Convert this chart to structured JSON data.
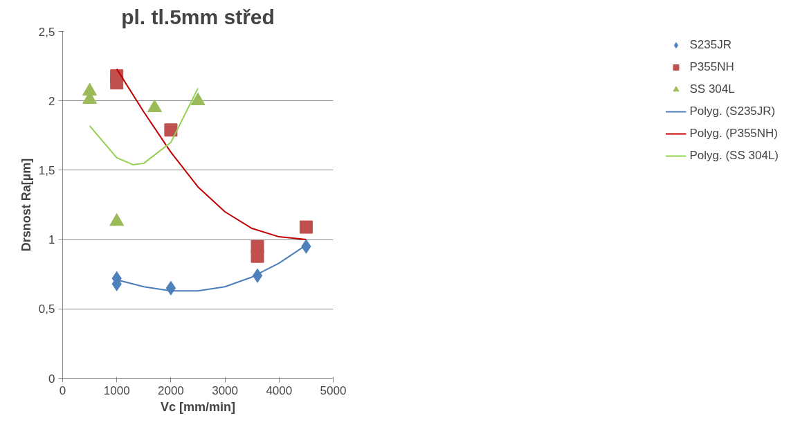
{
  "chart_data": {
    "type": "scatter",
    "title": "pl. tl.5mm střed",
    "xlabel": "Vc [mm/min]",
    "ylabel": "Drsnost Ra[µm]",
    "xlim": [
      0,
      5000
    ],
    "xticks": [
      0,
      1000,
      2000,
      3000,
      4000,
      5000
    ],
    "ylim": [
      0,
      2.5
    ],
    "yticks": [
      0,
      {
        "value": 0.5,
        "label": "0,5"
      },
      1,
      {
        "value": 1.5,
        "label": "1,5"
      },
      2,
      {
        "value": 2.5,
        "label": "2,5"
      }
    ],
    "grid": "y",
    "legend": "right",
    "series": [
      {
        "name": "S235JR",
        "color": "#4f81bd",
        "marker": "diamond",
        "x": [
          1000,
          1000,
          2000,
          3600,
          4500
        ],
        "values": [
          0.72,
          0.68,
          0.65,
          0.74,
          0.95
        ]
      },
      {
        "name": "P355NH",
        "color": "#c0504d",
        "marker": "square",
        "x": [
          1000,
          1000,
          2000,
          3600,
          3600,
          4500
        ],
        "values": [
          2.18,
          2.13,
          1.79,
          0.95,
          0.88,
          1.09
        ]
      },
      {
        "name": "SS 304L",
        "color": "#9bbb59",
        "marker": "triangle",
        "x": [
          500,
          500,
          1000,
          1700,
          2500
        ],
        "values": [
          2.07,
          2.01,
          1.13,
          1.95,
          2.0
        ]
      },
      {
        "name": "Polyg. (S235JR)",
        "type": "line",
        "marker": "none",
        "color": "#4a7ebb",
        "x": [
          1000,
          1500,
          2000,
          2500,
          3000,
          3500,
          4000,
          4500
        ],
        "values": [
          0.71,
          0.66,
          0.63,
          0.63,
          0.66,
          0.73,
          0.83,
          0.96
        ]
      },
      {
        "name": "Polyg. (P355NH)",
        "type": "line",
        "marker": "none",
        "color": "#c00000",
        "x": [
          1000,
          1500,
          2000,
          2500,
          3000,
          3500,
          4000,
          4500
        ],
        "values": [
          2.23,
          1.92,
          1.63,
          1.38,
          1.2,
          1.08,
          1.02,
          1.0
        ]
      },
      {
        "name": "Polyg. (SS 304L)",
        "type": "line",
        "marker": "none",
        "color": "#92d050",
        "x": [
          500,
          1000,
          1300,
          1500,
          2000,
          2500
        ],
        "values": [
          1.82,
          1.59,
          1.54,
          1.55,
          1.7,
          2.09
        ]
      }
    ]
  }
}
